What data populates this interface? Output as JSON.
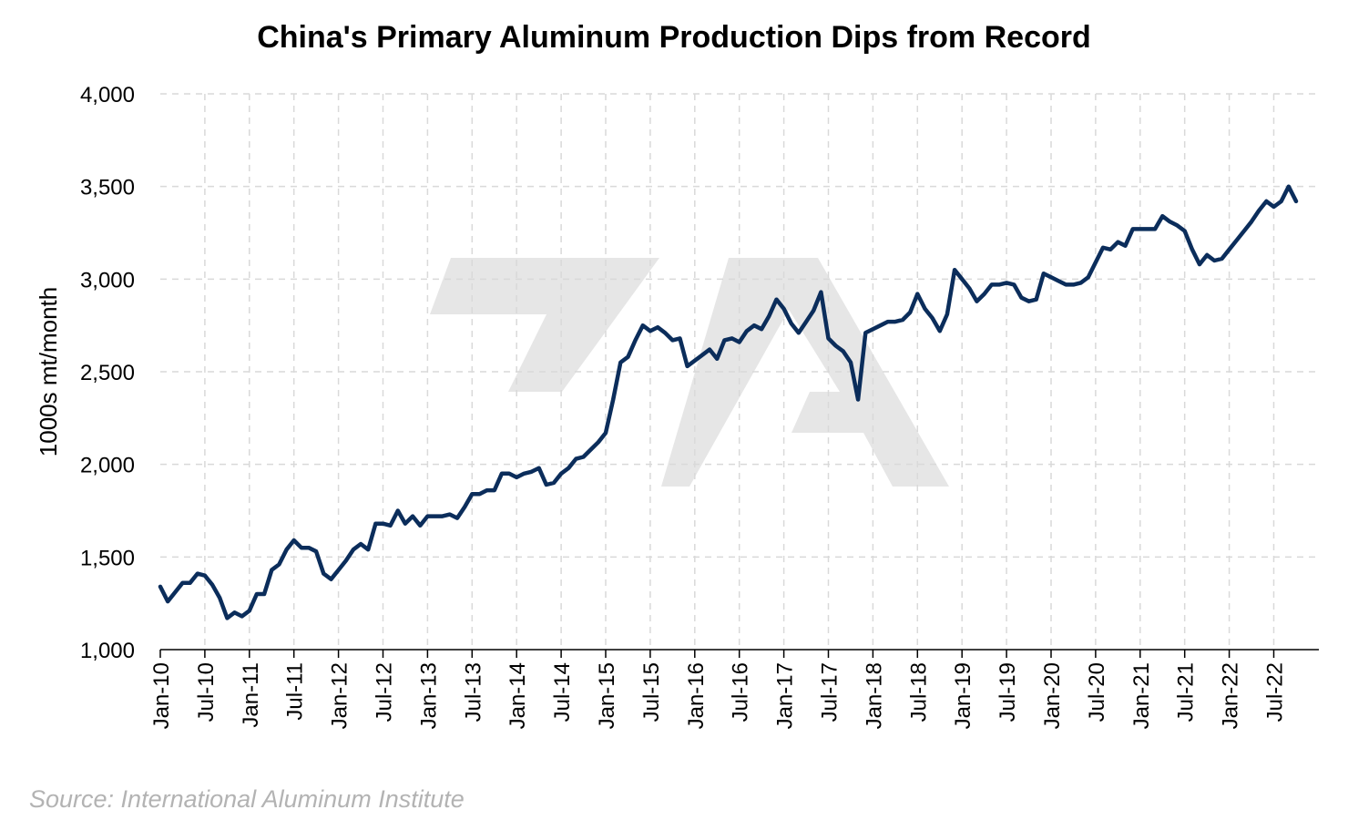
{
  "colors": {
    "line": "#0b2d5b",
    "grid": "#d9d9d9",
    "source_text": "#b3b3b3",
    "watermark": "#e6e6e6"
  },
  "source": "Source: International Aluminum Institute",
  "chart_data": {
    "type": "line",
    "title": "China's Primary Aluminum Production Dips from Record",
    "xlabel": "",
    "ylabel": "1000s mt/month",
    "ylim": [
      1000,
      4000
    ],
    "yticks": [
      1000,
      1500,
      2000,
      2500,
      3000,
      3500,
      4000
    ],
    "ytick_labels": [
      "1,000",
      "1,500",
      "2,000",
      "2,500",
      "3,000",
      "3,500",
      "4,000"
    ],
    "x_start": "Jan-10",
    "xtick_labels": [
      "Jan-10",
      "Jul-10",
      "Jan-11",
      "Jul-11",
      "Jan-12",
      "Jul-12",
      "Jan-13",
      "Jul-13",
      "Jan-14",
      "Jul-14",
      "Jan-15",
      "Jul-15",
      "Jan-16",
      "Jul-16",
      "Jan-17",
      "Jul-17",
      "Jan-18",
      "Jul-18",
      "Jan-19",
      "Jul-19",
      "Jan-20",
      "Jul-20",
      "Jan-21",
      "Jul-21",
      "Jan-22",
      "Jul-22"
    ],
    "grid": true,
    "legend": "none",
    "series": [
      {
        "values": [
          1340,
          1260,
          1310,
          1360,
          1360,
          1410,
          1400,
          1350,
          1280,
          1170,
          1200,
          1180,
          1210,
          1300,
          1300,
          1430,
          1460,
          1540,
          1590,
          1550,
          1550,
          1530,
          1410,
          1380,
          1430,
          1480,
          1540,
          1570,
          1540,
          1680,
          1680,
          1670,
          1750,
          1680,
          1720,
          1670,
          1720,
          1720,
          1720,
          1730,
          1710,
          1770,
          1840,
          1840,
          1860,
          1860,
          1950,
          1950,
          1930,
          1950,
          1960,
          1980,
          1890,
          1900,
          1950,
          1980,
          2030,
          2040,
          2080,
          2120,
          2170,
          2350,
          2550,
          2580,
          2670,
          2750,
          2720,
          2740,
          2710,
          2670,
          2680,
          2530,
          2560,
          2590,
          2620,
          2570,
          2670,
          2680,
          2660,
          2720,
          2750,
          2730,
          2800,
          2890,
          2840,
          2760,
          2710,
          2770,
          2830,
          2930,
          2680,
          2640,
          2610,
          2550,
          2350,
          2710,
          2730,
          2750,
          2770,
          2770,
          2780,
          2820,
          2920,
          2840,
          2790,
          2720,
          2810,
          3050,
          3000,
          2950,
          2880,
          2920,
          2970,
          2970,
          2980,
          2970,
          2900,
          2880,
          2890,
          3030,
          3010,
          2990,
          2970,
          2970,
          2980,
          3010,
          3090,
          3170,
          3160,
          3200,
          3180,
          3270,
          3270,
          3270,
          3270,
          3340,
          3310,
          3290,
          3260,
          3160,
          3080,
          3130,
          3100,
          3110,
          3160,
          3210,
          3260,
          3310,
          3370,
          3420,
          3390,
          3420,
          3500,
          3420
        ]
      }
    ]
  }
}
